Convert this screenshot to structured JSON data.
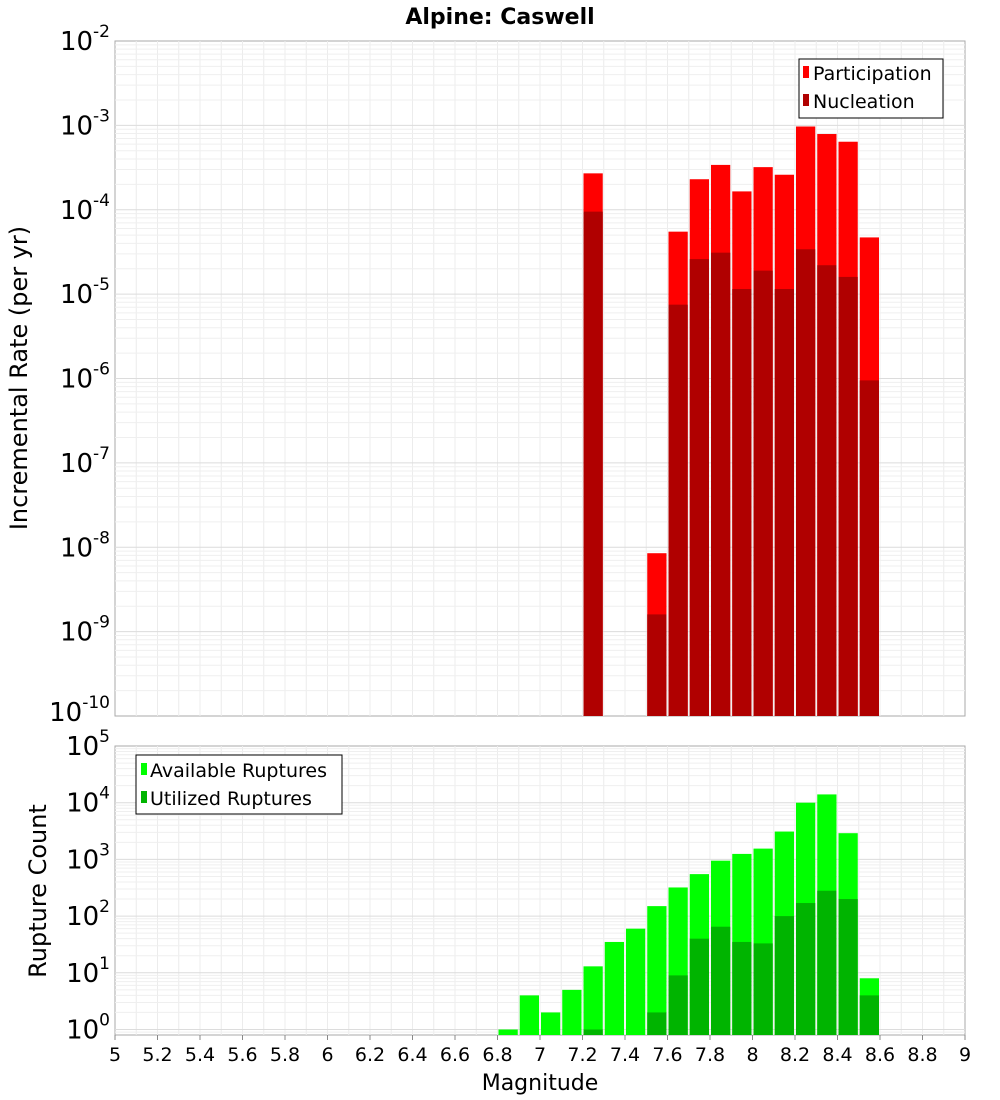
{
  "chart_data": [
    {
      "type": "bar",
      "title": "Alpine: Caswell",
      "xlabel": "",
      "ylabel": "Incremental Rate (per yr)",
      "y_scale": "log",
      "ylim": [
        1e-10,
        0.01
      ],
      "xlim": [
        5,
        9
      ],
      "bin_width": 0.1,
      "grid": true,
      "legend_position": "top-right",
      "y_ticks": [
        {
          "base": "10",
          "exp": "-10",
          "value": 1e-10
        },
        {
          "base": "10",
          "exp": "-9",
          "value": 1e-09
        },
        {
          "base": "10",
          "exp": "-8",
          "value": 1e-08
        },
        {
          "base": "10",
          "exp": "-7",
          "value": 1e-07
        },
        {
          "base": "10",
          "exp": "-6",
          "value": 1e-06
        },
        {
          "base": "10",
          "exp": "-5",
          "value": 1e-05
        },
        {
          "base": "10",
          "exp": "-4",
          "value": 0.0001
        },
        {
          "base": "10",
          "exp": "-3",
          "value": 0.001
        },
        {
          "base": "10",
          "exp": "-2",
          "value": 0.01
        }
      ],
      "series": [
        {
          "name": "Participation",
          "color": "#ff0000",
          "x": [
            7.25,
            7.55,
            7.65,
            7.75,
            7.85,
            7.95,
            8.05,
            8.15,
            8.25,
            8.35,
            8.45,
            8.55
          ],
          "values": [
            0.00027,
            8.5e-09,
            5.5e-05,
            0.00023,
            0.00034,
            0.000165,
            0.00032,
            0.00026,
            0.00097,
            0.00079,
            0.00064,
            4.7e-05
          ]
        },
        {
          "name": "Nucleation",
          "color": "#b00000",
          "x": [
            7.25,
            7.55,
            7.65,
            7.75,
            7.85,
            7.95,
            8.05,
            8.15,
            8.25,
            8.35,
            8.45,
            8.55
          ],
          "values": [
            9.5e-05,
            1.6e-09,
            7.5e-06,
            2.6e-05,
            3.1e-05,
            1.15e-05,
            1.9e-05,
            1.15e-05,
            3.4e-05,
            2.2e-05,
            1.6e-05,
            9.5e-07
          ]
        }
      ]
    },
    {
      "type": "bar",
      "title": "",
      "xlabel": "Magnitude",
      "ylabel": "Rupture Count",
      "y_scale": "log",
      "ylim": [
        0.8,
        100000.0
      ],
      "xlim": [
        5,
        9
      ],
      "bin_width": 0.1,
      "grid": true,
      "legend_position": "top-left",
      "x_ticks": [
        "5",
        "5.2",
        "5.4",
        "5.6",
        "5.8",
        "6",
        "6.2",
        "6.4",
        "6.6",
        "6.8",
        "7",
        "7.2",
        "7.4",
        "7.6",
        "7.8",
        "8",
        "8.2",
        "8.4",
        "8.6",
        "8.8",
        "9"
      ],
      "y_ticks": [
        {
          "base": "10",
          "exp": "0",
          "value": 1
        },
        {
          "base": "10",
          "exp": "1",
          "value": 10
        },
        {
          "base": "10",
          "exp": "2",
          "value": 100
        },
        {
          "base": "10",
          "exp": "3",
          "value": 1000
        },
        {
          "base": "10",
          "exp": "4",
          "value": 10000
        },
        {
          "base": "10",
          "exp": "5",
          "value": 100000
        }
      ],
      "series": [
        {
          "name": "Available Ruptures",
          "color": "#00ff00",
          "x": [
            6.85,
            6.95,
            7.05,
            7.15,
            7.25,
            7.35,
            7.45,
            7.55,
            7.65,
            7.75,
            7.85,
            7.95,
            8.05,
            8.15,
            8.25,
            8.35,
            8.45,
            8.55
          ],
          "values": [
            1,
            4,
            2,
            5,
            13,
            35,
            60,
            150,
            320,
            550,
            950,
            1250,
            1550,
            3100,
            10000,
            14000,
            2900,
            8
          ]
        },
        {
          "name": "Utilized Ruptures",
          "color": "#00b400",
          "x": [
            7.25,
            7.55,
            7.65,
            7.75,
            7.85,
            7.95,
            8.05,
            8.15,
            8.25,
            8.35,
            8.45,
            8.55
          ],
          "values": [
            1,
            2,
            9,
            40,
            65,
            35,
            33,
            100,
            170,
            280,
            200,
            4
          ]
        }
      ]
    }
  ]
}
